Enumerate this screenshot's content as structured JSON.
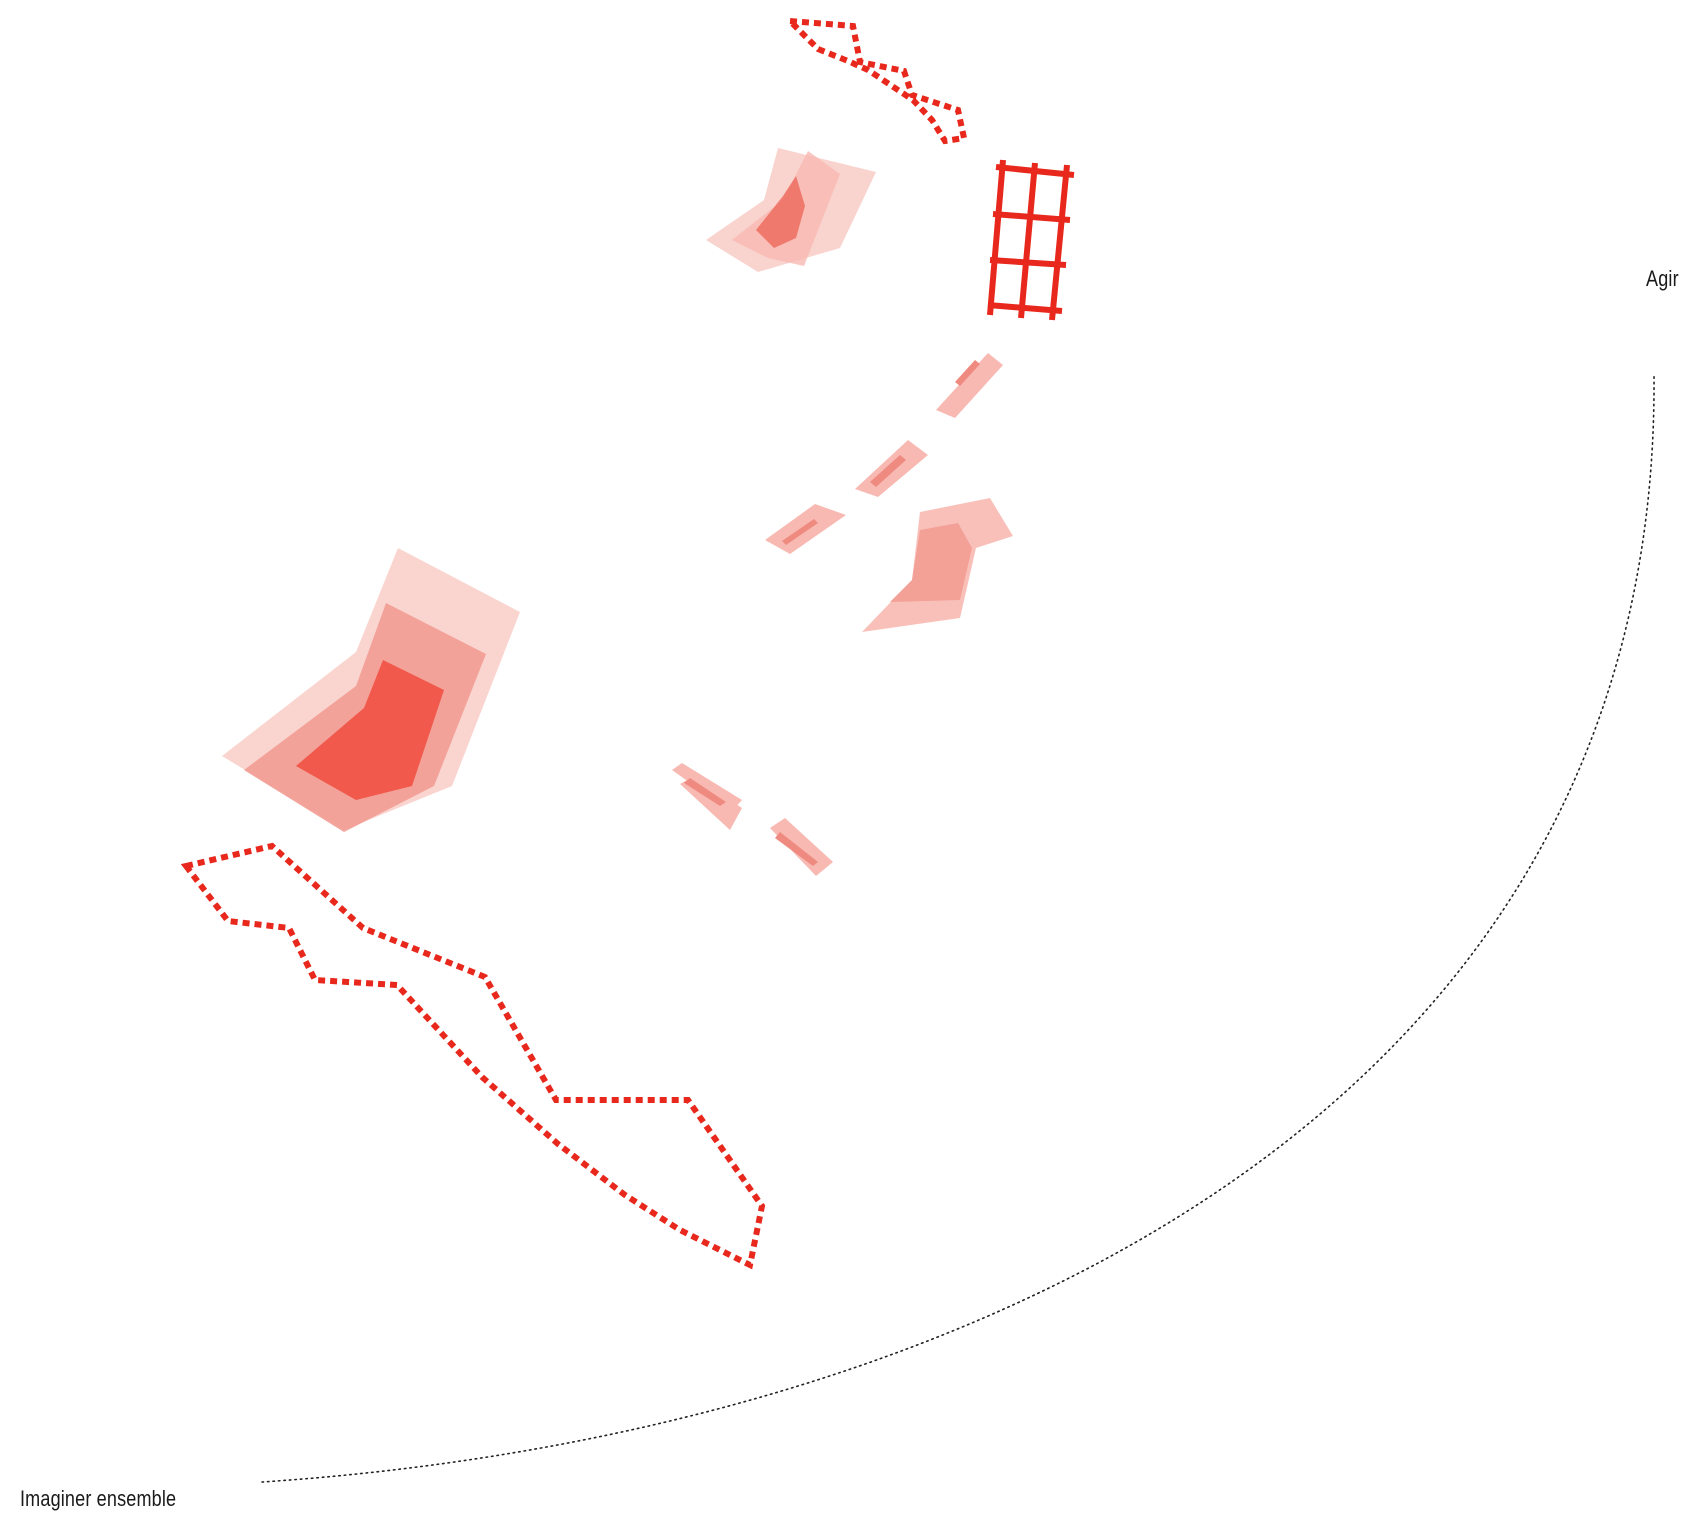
{
  "labels": {
    "start": "Imaginer ensemble",
    "end": "Agir"
  },
  "colors": {
    "accent": "#e8281c",
    "fill_light": "#f8b9b2",
    "fill_mid": "#f29c93",
    "fill_dark": "#ef5548",
    "arc": "#222222"
  }
}
